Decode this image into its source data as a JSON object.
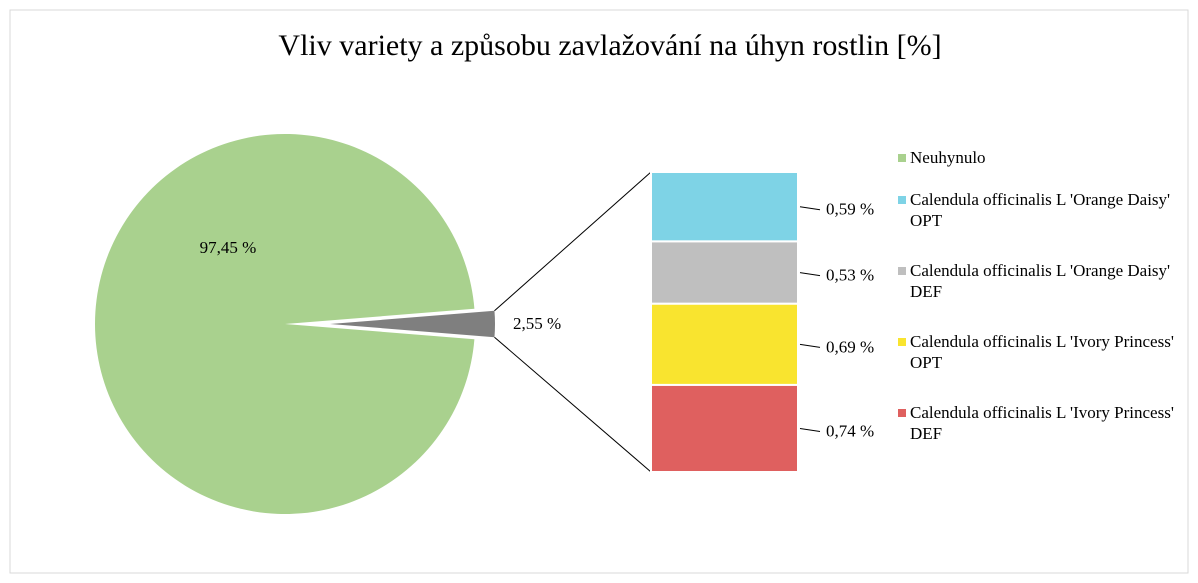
{
  "chart_data": {
    "type": "pie",
    "title": "Vliv variety a způsobu zavlažování na úhyn rostlin [%]",
    "categories": [
      "Neuhynulo",
      null
    ],
    "values": [
      97.45,
      2.55
    ],
    "value_labels": [
      "97,45 %",
      "2,55 %"
    ],
    "colors": [
      "#a9d18e",
      "#7f7f7f"
    ],
    "breakdown": {
      "type": "bar",
      "categories": [
        "Calendula officinalis L 'Orange Daisy' OPT",
        "Calendula officinalis L 'Orange Daisy' DEF",
        "Calendula officinalis L 'Ivory Princess' OPT",
        "Calendula officinalis L 'Ivory Princess' DEF"
      ],
      "values": [
        0.59,
        0.53,
        0.69,
        0.74
      ],
      "value_labels": [
        "0,59 %",
        "0,53 %",
        "0,69 %",
        "0,74 %"
      ],
      "colors": [
        "#7ed3e6",
        "#bfbfbf",
        "#f9e42f",
        "#df605f"
      ]
    }
  }
}
